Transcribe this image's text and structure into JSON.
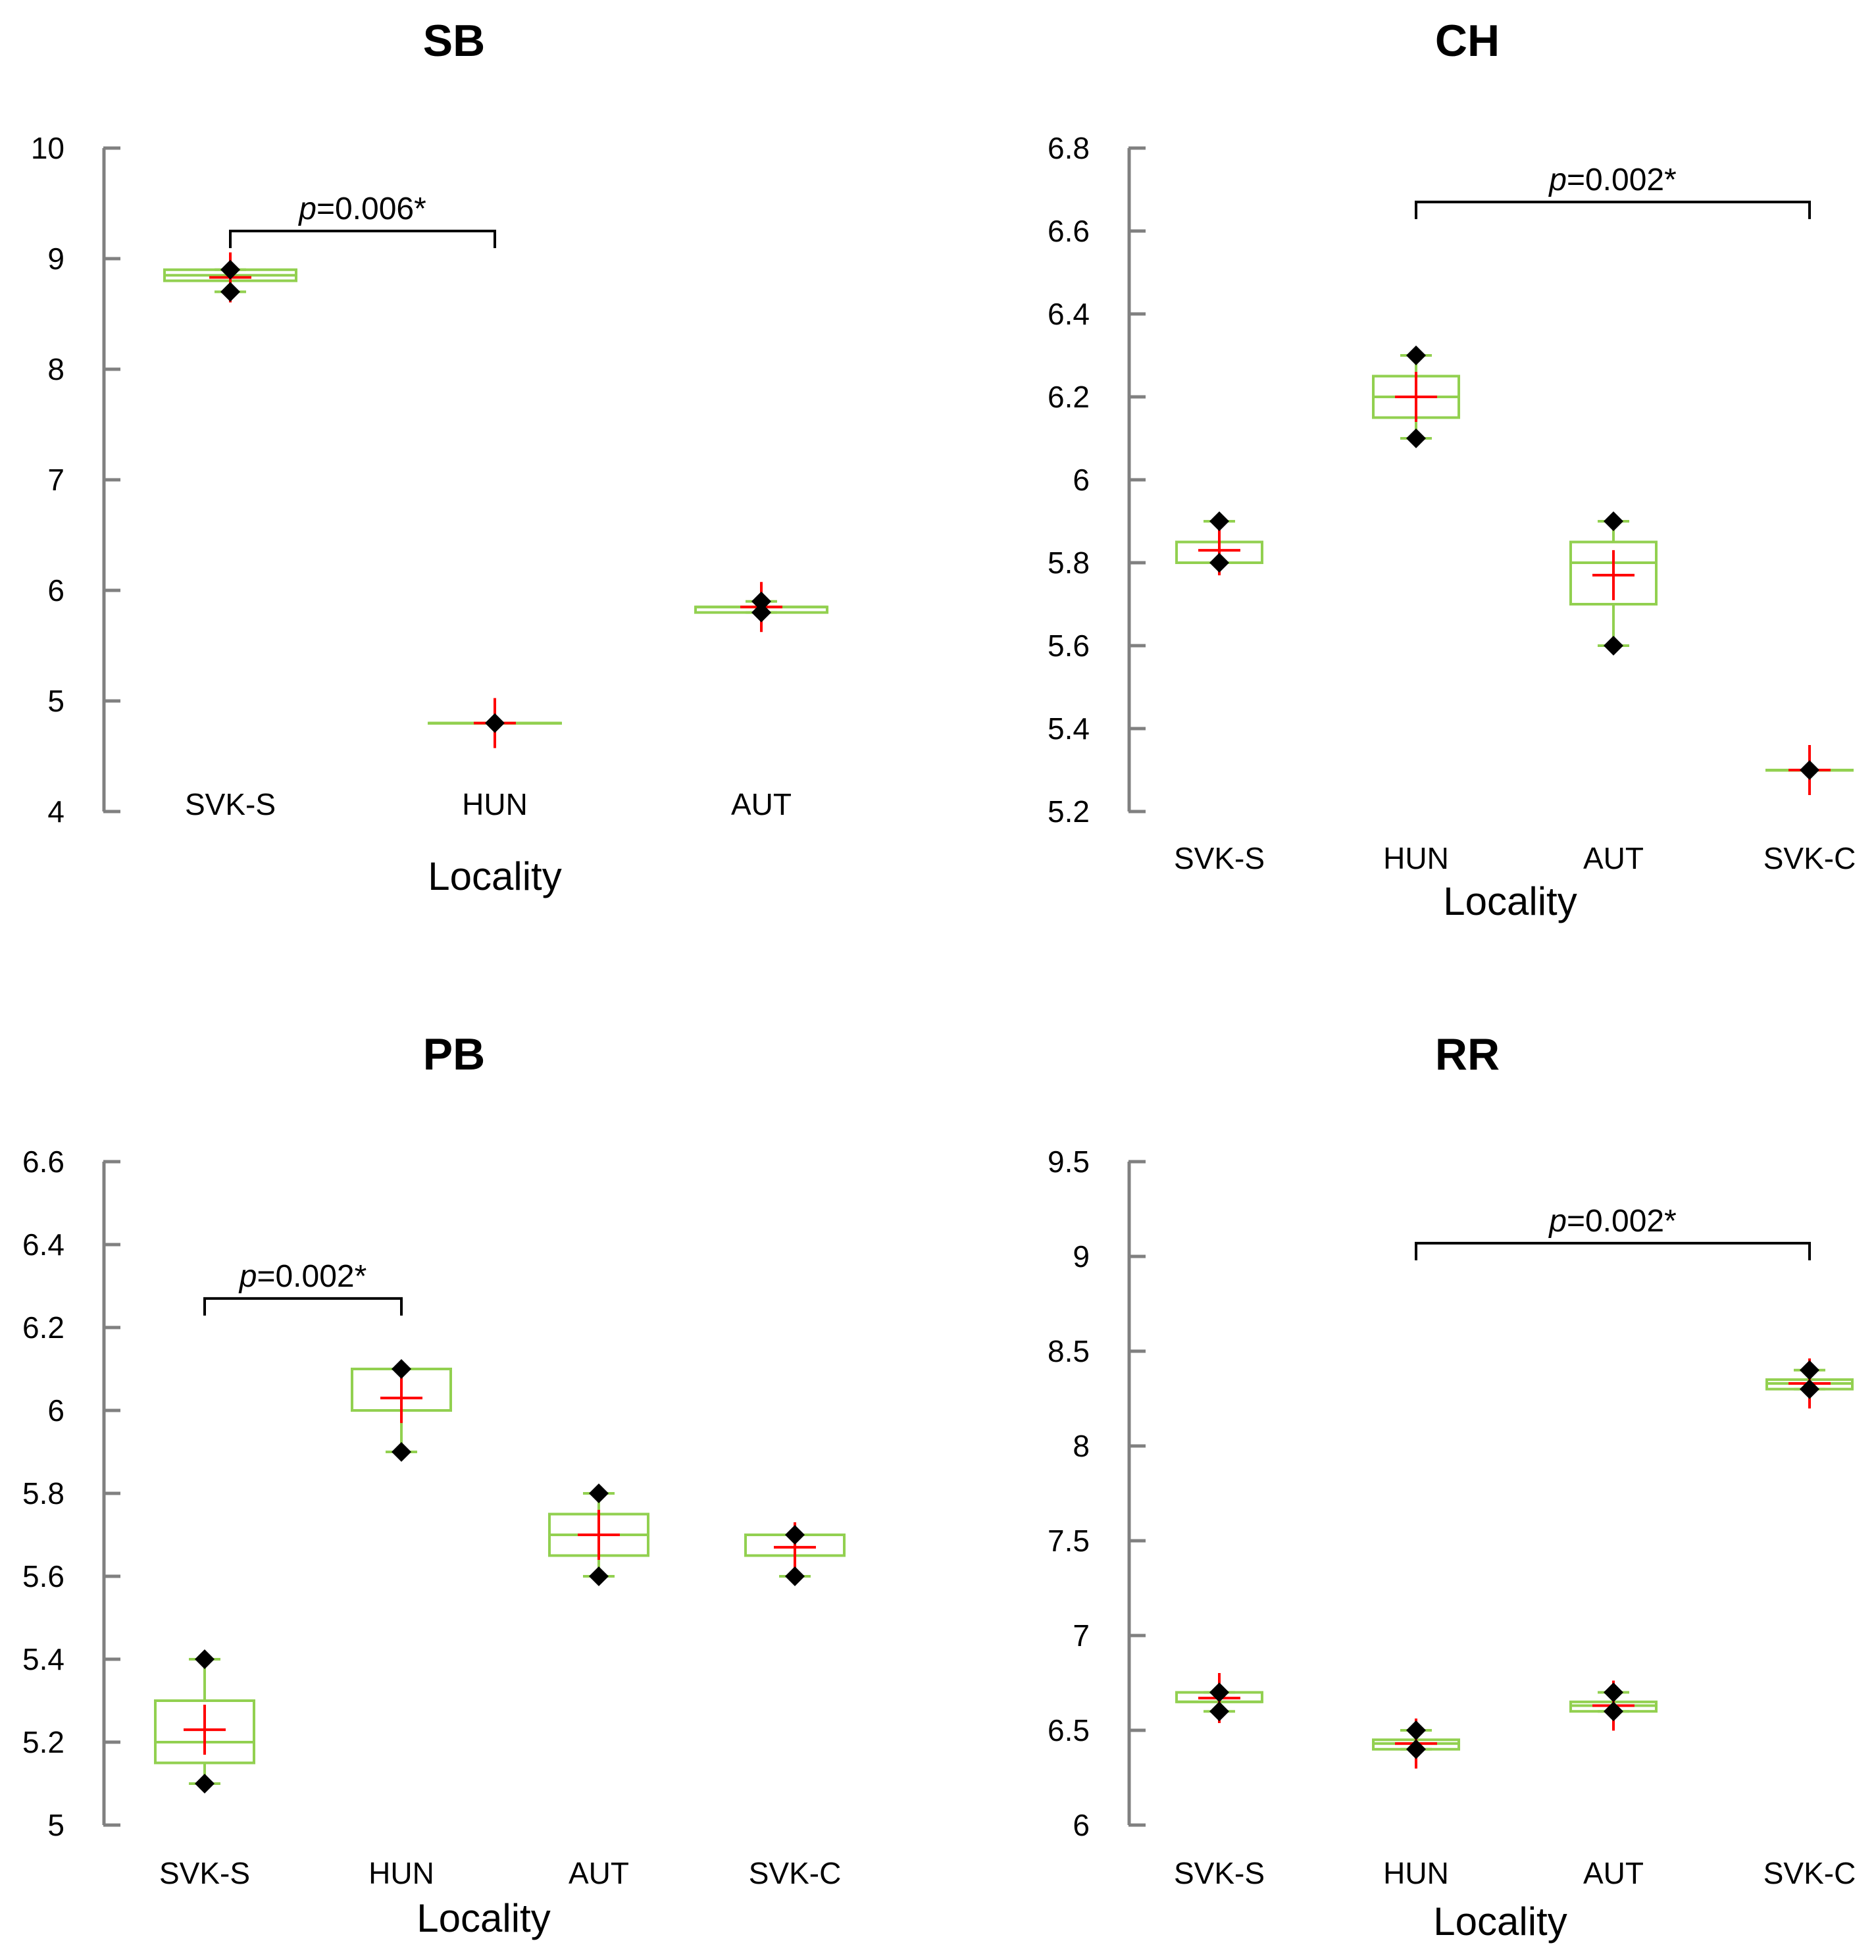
{
  "chart_data": [
    {
      "type": "box",
      "title": "SB",
      "xlabel": "Locality",
      "ylabel": "",
      "ylim": [
        4,
        10
      ],
      "yticks": [
        4,
        5,
        6,
        7,
        8,
        9,
        10
      ],
      "ytick_labels": [
        "4",
        "5",
        "6",
        "7",
        "8",
        "9",
        "10"
      ],
      "categories": [
        "SVK-S",
        "HUN",
        "AUT"
      ],
      "boxes": [
        {
          "min": 8.7,
          "q1": 8.8,
          "median": 8.85,
          "q3": 8.9,
          "max": 8.9,
          "mean": 8.83,
          "points": [
            8.9,
            8.7
          ]
        },
        {
          "min": 4.8,
          "q1": 4.8,
          "median": 4.8,
          "q3": 4.8,
          "max": 4.8,
          "mean": 4.8,
          "points": [
            4.8
          ]
        },
        {
          "min": 5.8,
          "q1": 5.8,
          "median": 5.85,
          "q3": 5.85,
          "max": 5.9,
          "mean": 5.85,
          "points": [
            5.9,
            5.8
          ]
        }
      ],
      "comparison": {
        "from": 0,
        "to": 1,
        "p_prefix": "p",
        "p_text": "=0.006*",
        "y": 9.25
      }
    },
    {
      "type": "box",
      "title": "CH",
      "xlabel": "Locality",
      "ylabel": "",
      "ylim": [
        5.2,
        6.8
      ],
      "yticks": [
        5.2,
        5.4,
        5.6,
        5.8,
        6.0,
        6.2,
        6.4,
        6.6,
        6.8
      ],
      "ytick_labels": [
        "5.2",
        "5.4",
        "5.6",
        "5.8",
        "6",
        "6.2",
        "6.4",
        "6.6",
        "6.8"
      ],
      "categories": [
        "SVK-S",
        "HUN",
        "AUT",
        "SVK-C"
      ],
      "boxes": [
        {
          "min": 5.8,
          "q1": 5.8,
          "median": 5.8,
          "q3": 5.85,
          "max": 5.9,
          "mean": 5.83,
          "points": [
            5.9,
            5.8
          ]
        },
        {
          "min": 6.1,
          "q1": 6.15,
          "median": 6.2,
          "q3": 6.25,
          "max": 6.3,
          "mean": 6.2,
          "points": [
            6.3,
            6.1
          ]
        },
        {
          "min": 5.6,
          "q1": 5.7,
          "median": 5.8,
          "q3": 5.85,
          "max": 5.9,
          "mean": 5.77,
          "points": [
            5.9,
            5.6
          ]
        },
        {
          "min": 5.3,
          "q1": 5.3,
          "median": 5.3,
          "q3": 5.3,
          "max": 5.3,
          "mean": 5.3,
          "points": [
            5.3
          ]
        }
      ],
      "comparison": {
        "from": 1,
        "to": 3,
        "p_prefix": "p",
        "p_text": "=0.002*",
        "y": 6.67
      }
    },
    {
      "type": "box",
      "title": "PB",
      "xlabel": "Locality",
      "ylabel": "",
      "ylim": [
        5.0,
        6.6
      ],
      "yticks": [
        5.0,
        5.2,
        5.4,
        5.6,
        5.8,
        6.0,
        6.2,
        6.4,
        6.6
      ],
      "ytick_labels": [
        "5",
        "5.2",
        "5.4",
        "5.6",
        "5.8",
        "6",
        "6.2",
        "6.4",
        "6.6"
      ],
      "categories": [
        "SVK-S",
        "HUN",
        "AUT",
        "SVK-C"
      ],
      "boxes": [
        {
          "min": 5.1,
          "q1": 5.15,
          "median": 5.2,
          "q3": 5.3,
          "max": 5.4,
          "mean": 5.23,
          "points": [
            5.4,
            5.1
          ]
        },
        {
          "min": 5.9,
          "q1": 6.0,
          "median": 6.0,
          "q3": 6.1,
          "max": 6.1,
          "mean": 6.03,
          "points": [
            6.1,
            5.9
          ]
        },
        {
          "min": 5.6,
          "q1": 5.65,
          "median": 5.7,
          "q3": 5.75,
          "max": 5.8,
          "mean": 5.7,
          "points": [
            5.8,
            5.6
          ]
        },
        {
          "min": 5.6,
          "q1": 5.65,
          "median": 5.7,
          "q3": 5.7,
          "max": 5.7,
          "mean": 5.67,
          "points": [
            5.7,
            5.6
          ]
        }
      ],
      "comparison": {
        "from": 0,
        "to": 1,
        "p_prefix": "p",
        "p_text": "=0.002*",
        "y": 6.27
      }
    },
    {
      "type": "box",
      "title": "RR",
      "xlabel": "Locality",
      "ylabel": "",
      "ylim": [
        6.0,
        9.5
      ],
      "yticks": [
        6.0,
        6.5,
        7.0,
        7.5,
        8.0,
        8.5,
        9.0,
        9.5
      ],
      "ytick_labels": [
        "6",
        "6.5",
        "7",
        "7.5",
        "8",
        "8.5",
        "9",
        "9.5"
      ],
      "categories": [
        "SVK-S",
        "HUN",
        "AUT",
        "SVK-C"
      ],
      "boxes": [
        {
          "min": 6.6,
          "q1": 6.65,
          "median": 6.65,
          "q3": 6.7,
          "max": 6.7,
          "mean": 6.67,
          "points": [
            6.7,
            6.6
          ]
        },
        {
          "min": 6.4,
          "q1": 6.4,
          "median": 6.43,
          "q3": 6.45,
          "max": 6.5,
          "mean": 6.43,
          "points": [
            6.5,
            6.4
          ]
        },
        {
          "min": 6.6,
          "q1": 6.6,
          "median": 6.63,
          "q3": 6.65,
          "max": 6.7,
          "mean": 6.63,
          "points": [
            6.7,
            6.6
          ]
        },
        {
          "min": 8.3,
          "q1": 8.3,
          "median": 8.33,
          "q3": 8.35,
          "max": 8.4,
          "mean": 8.33,
          "points": [
            8.4,
            8.3
          ]
        }
      ],
      "comparison": {
        "from": 1,
        "to": 3,
        "p_prefix": "p",
        "p_text": "=0.002*",
        "y": 9.07
      }
    }
  ],
  "colors": {
    "box": "#92d050",
    "mean": "#ff0000",
    "points": "#000000",
    "axis": "#808080",
    "bracket": "#000000",
    "text": "#000000"
  }
}
